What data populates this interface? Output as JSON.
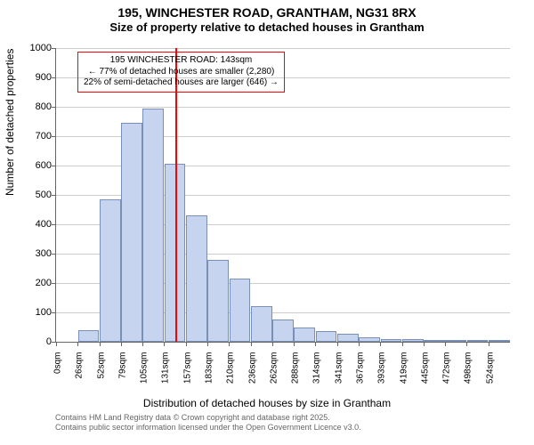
{
  "title": {
    "line1": "195, WINCHESTER ROAD, GRANTHAM, NG31 8RX",
    "line2": "Size of property relative to detached houses in Grantham"
  },
  "chart": {
    "type": "histogram",
    "background_color": "#ffffff",
    "grid_color": "#cccccc",
    "axis_color": "#666666",
    "bar_fill": "#c6d4ef",
    "bar_stroke": "#7a8fb8",
    "marker_color": "#ff0000",
    "annot_border": "#ff0000",
    "ylim": [
      0,
      1000
    ],
    "ytick_step": 100,
    "yticks": [
      0,
      100,
      200,
      300,
      400,
      500,
      600,
      700,
      800,
      900,
      1000
    ],
    "xticks": [
      "0sqm",
      "26sqm",
      "52sqm",
      "79sqm",
      "105sqm",
      "131sqm",
      "157sqm",
      "183sqm",
      "210sqm",
      "236sqm",
      "262sqm",
      "288sqm",
      "314sqm",
      "341sqm",
      "367sqm",
      "393sqm",
      "419sqm",
      "445sqm",
      "472sqm",
      "498sqm",
      "524sqm"
    ],
    "values": [
      0,
      40,
      485,
      745,
      795,
      605,
      430,
      280,
      215,
      120,
      75,
      50,
      35,
      28,
      15,
      10,
      8,
      5,
      4,
      3,
      2
    ],
    "marker_x_index": 5.5,
    "ylabel": "Number of detached properties",
    "xlabel": "Distribution of detached houses by size in Grantham",
    "title_fontsize": 14,
    "label_fontsize": 12,
    "tick_fontsize": 11,
    "bar_count": 21
  },
  "annotation": {
    "line1": "195 WINCHESTER ROAD: 143sqm",
    "line2": "← 77% of detached houses are smaller (2,280)",
    "line3": "22% of semi-detached houses are larger (646) →"
  },
  "footer": {
    "line1": "Contains HM Land Registry data © Crown copyright and database right 2025.",
    "line2": "Contains public sector information licensed under the Open Government Licence v3.0."
  }
}
